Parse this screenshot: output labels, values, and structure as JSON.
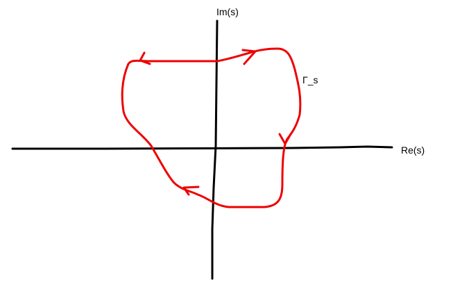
{
  "diagram": {
    "axes": {
      "imaginary_label": "Im(s)",
      "real_label": "Re(s)"
    },
    "contour": {
      "label": "Γ_s",
      "color": "#ee0000",
      "direction": "clockwise",
      "arrows": 5
    },
    "axis_color": "#000000",
    "background": "#ffffff"
  }
}
